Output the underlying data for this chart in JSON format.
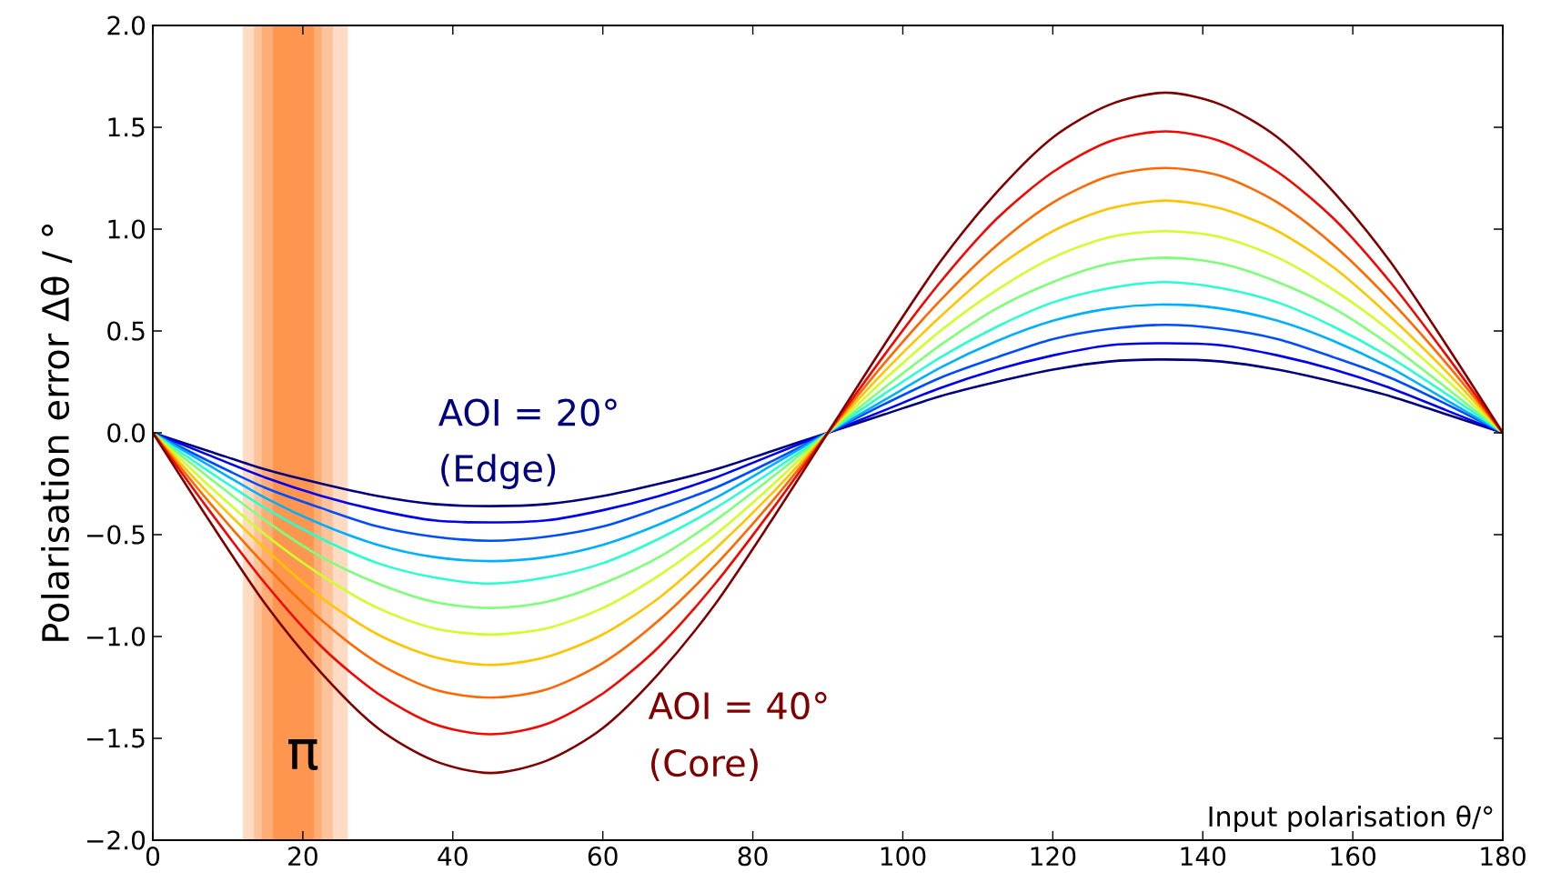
{
  "chart_data": {
    "type": "line",
    "xlabel": "Input polarisation θ/°",
    "ylabel": "Polarisation error Δθ / °",
    "x": [
      0,
      7.5,
      15,
      22.5,
      30,
      37.5,
      45,
      52.5,
      60,
      67.5,
      75,
      82.5,
      90,
      97.5,
      105,
      112.5,
      120,
      127.5,
      135,
      142.5,
      150,
      157.5,
      165,
      172.5,
      180
    ],
    "series": [
      {
        "color": "#00007f",
        "values": [
          0,
          -0.09,
          -0.18,
          -0.25,
          -0.31,
          -0.35,
          -0.36,
          -0.35,
          -0.31,
          -0.25,
          -0.18,
          -0.09,
          0,
          0.09,
          0.18,
          0.25,
          0.31,
          0.35,
          0.36,
          0.35,
          0.31,
          0.25,
          0.18,
          0.09,
          0
        ]
      },
      {
        "color": "#0000f1",
        "values": [
          0,
          -0.11,
          -0.22,
          -0.31,
          -0.38,
          -0.43,
          -0.44,
          -0.43,
          -0.38,
          -0.31,
          -0.22,
          -0.11,
          0,
          0.11,
          0.22,
          0.31,
          0.38,
          0.43,
          0.44,
          0.43,
          0.38,
          0.31,
          0.22,
          0.11,
          0
        ]
      },
      {
        "color": "#004cff",
        "values": [
          0,
          -0.14,
          -0.27,
          -0.37,
          -0.46,
          -0.51,
          -0.53,
          -0.51,
          -0.46,
          -0.37,
          -0.27,
          -0.14,
          0,
          0.14,
          0.27,
          0.37,
          0.46,
          0.51,
          0.53,
          0.51,
          0.46,
          0.37,
          0.27,
          0.14,
          0
        ]
      },
      {
        "color": "#00b0ff",
        "values": [
          0,
          -0.16,
          -0.32,
          -0.45,
          -0.55,
          -0.61,
          -0.63,
          -0.61,
          -0.55,
          -0.45,
          -0.32,
          -0.16,
          0,
          0.16,
          0.32,
          0.45,
          0.55,
          0.61,
          0.63,
          0.61,
          0.55,
          0.45,
          0.32,
          0.16,
          0
        ]
      },
      {
        "color": "#29ffce",
        "values": [
          0,
          -0.19,
          -0.37,
          -0.52,
          -0.64,
          -0.71,
          -0.74,
          -0.71,
          -0.64,
          -0.52,
          -0.37,
          -0.19,
          0,
          0.19,
          0.37,
          0.52,
          0.64,
          0.71,
          0.74,
          0.71,
          0.64,
          0.52,
          0.37,
          0.19,
          0
        ]
      },
      {
        "color": "#7dff7a",
        "values": [
          0,
          -0.22,
          -0.43,
          -0.61,
          -0.74,
          -0.83,
          -0.86,
          -0.83,
          -0.74,
          -0.61,
          -0.43,
          -0.22,
          0,
          0.22,
          0.43,
          0.61,
          0.74,
          0.83,
          0.86,
          0.83,
          0.74,
          0.61,
          0.43,
          0.22,
          0
        ]
      },
      {
        "color": "#ceff29",
        "values": [
          0,
          -0.26,
          -0.5,
          -0.7,
          -0.86,
          -0.96,
          -0.99,
          -0.96,
          -0.86,
          -0.7,
          -0.5,
          -0.26,
          0,
          0.26,
          0.5,
          0.7,
          0.86,
          0.96,
          0.99,
          0.96,
          0.86,
          0.7,
          0.5,
          0.26,
          0
        ]
      },
      {
        "color": "#ffc400",
        "values": [
          0,
          -0.3,
          -0.57,
          -0.81,
          -0.99,
          -1.1,
          -1.14,
          -1.1,
          -0.99,
          -0.81,
          -0.57,
          -0.3,
          0,
          0.3,
          0.57,
          0.81,
          0.99,
          1.1,
          1.14,
          1.1,
          0.99,
          0.81,
          0.57,
          0.3,
          0
        ]
      },
      {
        "color": "#ff6800",
        "values": [
          0,
          -0.34,
          -0.65,
          -0.92,
          -1.13,
          -1.26,
          -1.3,
          -1.26,
          -1.13,
          -0.92,
          -0.65,
          -0.34,
          0,
          0.34,
          0.65,
          0.92,
          1.13,
          1.26,
          1.3,
          1.26,
          1.13,
          0.92,
          0.65,
          0.34,
          0
        ]
      },
      {
        "color": "#f10800",
        "values": [
          0,
          -0.38,
          -0.74,
          -1.05,
          -1.28,
          -1.43,
          -1.48,
          -1.43,
          -1.28,
          -1.05,
          -0.74,
          -0.38,
          0,
          0.38,
          0.74,
          1.05,
          1.28,
          1.43,
          1.48,
          1.43,
          1.28,
          1.05,
          0.74,
          0.38,
          0
        ]
      },
      {
        "color": "#7f0000",
        "values": [
          0,
          -0.43,
          -0.84,
          -1.18,
          -1.45,
          -1.61,
          -1.67,
          -1.61,
          -1.45,
          -1.18,
          -0.84,
          -0.43,
          0,
          0.43,
          0.84,
          1.18,
          1.45,
          1.61,
          1.67,
          1.61,
          1.45,
          1.18,
          0.84,
          0.43,
          0
        ]
      }
    ],
    "xlim": [
      0,
      180
    ],
    "ylim": [
      -2,
      2
    ],
    "xticks": [
      0,
      20,
      40,
      60,
      80,
      100,
      120,
      140,
      160,
      180
    ],
    "yticks": [
      {
        "value": -2,
        "label": "−2.0"
      },
      {
        "value": -1.5,
        "label": "−1.5"
      },
      {
        "value": -1,
        "label": "−1.0"
      },
      {
        "value": -0.5,
        "label": "−0.5"
      },
      {
        "value": 0,
        "label": "0.0"
      },
      {
        "value": 0.5,
        "label": "0.5"
      },
      {
        "value": 1,
        "label": "1.0"
      },
      {
        "value": 1.5,
        "label": "1.5"
      },
      {
        "value": 2,
        "label": "2.0"
      }
    ],
    "bands": [
      {
        "axis": "x",
        "from": 12,
        "to": 26,
        "color": "#fedbc2"
      },
      {
        "axis": "x",
        "from": 13.5,
        "to": 24,
        "color": "#fec39b"
      },
      {
        "axis": "x",
        "from": 14.5,
        "to": 22.5,
        "color": "#feae75"
      },
      {
        "axis": "x",
        "from": 16,
        "to": 21.5,
        "color": "#fe9650"
      }
    ],
    "annotations": [
      "AOI = 20°",
      "(Edge)",
      "AOI = 40°",
      "(Core)",
      "π"
    ]
  }
}
